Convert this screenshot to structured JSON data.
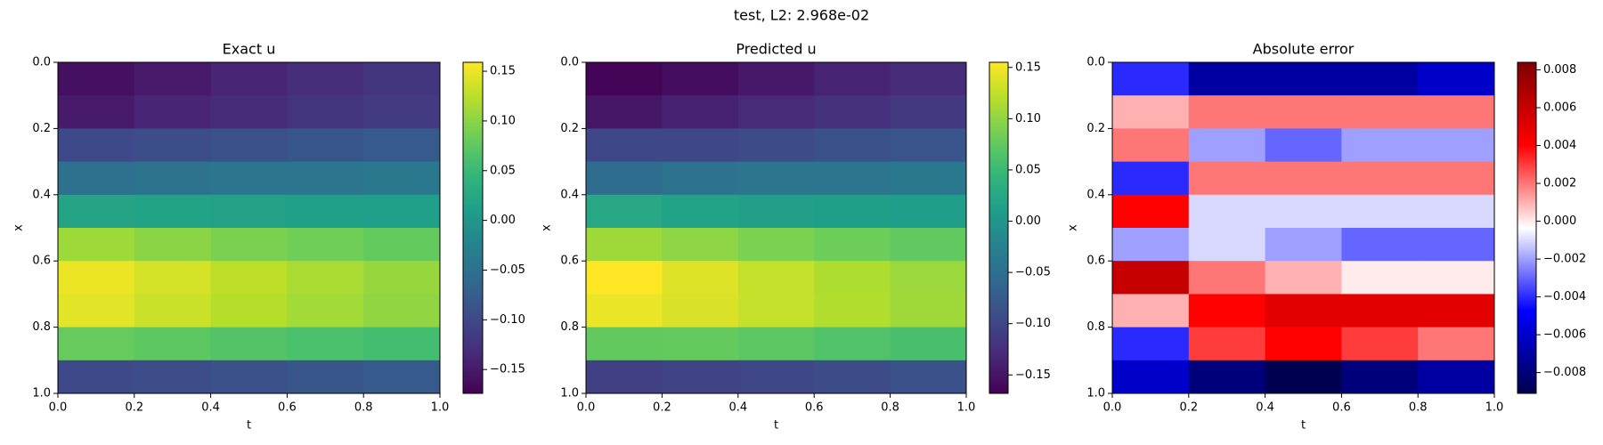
{
  "title": "test, L2: 2.968e-02",
  "chart_data": [
    {
      "type": "heatmap",
      "title": "Exact u",
      "xlabel": "t",
      "ylabel": "x",
      "x": [
        0.1,
        0.3,
        0.5,
        0.7,
        0.9
      ],
      "y": [
        0.05,
        0.15,
        0.25,
        0.35,
        0.45,
        0.55,
        0.65,
        0.75,
        0.85,
        0.95
      ],
      "z": [
        [
          -0.16,
          -0.15,
          -0.14,
          -0.13,
          -0.122
        ],
        [
          -0.15,
          -0.14,
          -0.132,
          -0.124,
          -0.116
        ],
        [
          -0.1,
          -0.095,
          -0.09,
          -0.085,
          -0.08
        ],
        [
          -0.05,
          -0.048,
          -0.045,
          -0.043,
          -0.04
        ],
        [
          0.02,
          0.018,
          0.016,
          0.014,
          0.012
        ],
        [
          0.11,
          0.1,
          0.092,
          0.085,
          0.078
        ],
        [
          0.15,
          0.138,
          0.126,
          0.116,
          0.106
        ],
        [
          0.145,
          0.133,
          0.122,
          0.112,
          0.103
        ],
        [
          0.08,
          0.074,
          0.068,
          0.062,
          0.058
        ],
        [
          -0.1,
          -0.095,
          -0.09,
          -0.085,
          -0.08
        ]
      ],
      "xlim": [
        0,
        1
      ],
      "ylim": [
        1,
        0
      ],
      "xticks": [
        {
          "value": 0,
          "label": "0.0"
        },
        {
          "value": 0.2,
          "label": "0.2"
        },
        {
          "value": 0.4,
          "label": "0.4"
        },
        {
          "value": 0.6,
          "label": "0.6"
        },
        {
          "value": 0.8,
          "label": "0.8"
        },
        {
          "value": 1,
          "label": "1.0"
        }
      ],
      "yticks": [
        {
          "value": 0,
          "label": "0.0"
        },
        {
          "value": 0.2,
          "label": "0.2"
        },
        {
          "value": 0.4,
          "label": "0.4"
        },
        {
          "value": 0.6,
          "label": "0.6"
        },
        {
          "value": 0.8,
          "label": "0.8"
        },
        {
          "value": 1,
          "label": "1.0"
        }
      ],
      "cmap": "viridis",
      "clim": [
        -0.174,
        0.159
      ],
      "cticks": [
        {
          "value": -0.15,
          "label": "−0.15"
        },
        {
          "value": -0.1,
          "label": "−0.10"
        },
        {
          "value": -0.05,
          "label": "−0.05"
        },
        {
          "value": 0,
          "label": "0.00"
        },
        {
          "value": 0.05,
          "label": "0.05"
        },
        {
          "value": 0.1,
          "label": "0.10"
        },
        {
          "value": 0.15,
          "label": "0.15"
        }
      ]
    },
    {
      "type": "heatmap",
      "title": "Predicted u",
      "xlabel": "t",
      "ylabel": "x",
      "x": [
        0.1,
        0.3,
        0.5,
        0.7,
        0.9
      ],
      "y": [
        0.05,
        0.15,
        0.25,
        0.35,
        0.45,
        0.55,
        0.65,
        0.75,
        0.85,
        0.95
      ],
      "z": [
        [
          -0.164,
          -0.157,
          -0.147,
          -0.137,
          -0.128
        ],
        [
          -0.149,
          -0.138,
          -0.13,
          -0.122,
          -0.114
        ],
        [
          -0.098,
          -0.097,
          -0.093,
          -0.087,
          -0.082
        ],
        [
          -0.054,
          -0.046,
          -0.043,
          -0.041,
          -0.038
        ],
        [
          0.024,
          0.017,
          0.015,
          0.013,
          0.011
        ],
        [
          0.108,
          0.099,
          0.09,
          0.082,
          0.075
        ],
        [
          0.156,
          0.14,
          0.127,
          0.116,
          0.106
        ],
        [
          0.146,
          0.137,
          0.127,
          0.117,
          0.108
        ],
        [
          0.076,
          0.077,
          0.072,
          0.065,
          0.06
        ],
        [
          -0.106,
          -0.103,
          -0.099,
          -0.093,
          -0.087
        ]
      ],
      "xlim": [
        0,
        1
      ],
      "ylim": [
        1,
        0
      ],
      "xticks": [
        {
          "value": 0,
          "label": "0.0"
        },
        {
          "value": 0.2,
          "label": "0.2"
        },
        {
          "value": 0.4,
          "label": "0.4"
        },
        {
          "value": 0.6,
          "label": "0.6"
        },
        {
          "value": 0.8,
          "label": "0.8"
        },
        {
          "value": 1,
          "label": "1.0"
        }
      ],
      "yticks": [
        {
          "value": 0,
          "label": "0.0"
        },
        {
          "value": 0.2,
          "label": "0.2"
        },
        {
          "value": 0.4,
          "label": "0.4"
        },
        {
          "value": 0.6,
          "label": "0.6"
        },
        {
          "value": 0.8,
          "label": "0.8"
        },
        {
          "value": 1,
          "label": "1.0"
        }
      ],
      "cmap": "viridis",
      "clim": [
        -0.168,
        0.155
      ],
      "cticks": [
        {
          "value": -0.15,
          "label": "−0.15"
        },
        {
          "value": -0.1,
          "label": "−0.10"
        },
        {
          "value": -0.05,
          "label": "−0.05"
        },
        {
          "value": 0,
          "label": "0.00"
        },
        {
          "value": 0.05,
          "label": "0.05"
        },
        {
          "value": 0.1,
          "label": "0.10"
        },
        {
          "value": 0.15,
          "label": "0.15"
        }
      ]
    },
    {
      "type": "heatmap",
      "title": "Absolute error",
      "xlabel": "t",
      "ylabel": "x",
      "x": [
        0.1,
        0.3,
        0.5,
        0.7,
        0.9
      ],
      "y": [
        0.05,
        0.15,
        0.25,
        0.35,
        0.45,
        0.55,
        0.65,
        0.75,
        0.85,
        0.95
      ],
      "z": [
        [
          -0.004,
          -0.007,
          -0.007,
          -0.007,
          -0.006
        ],
        [
          0.001,
          0.002,
          0.002,
          0.002,
          0.002
        ],
        [
          0.002,
          -0.002,
          -0.003,
          -0.002,
          -0.002
        ],
        [
          -0.004,
          0.002,
          0.002,
          0.002,
          0.002
        ],
        [
          0.004,
          -0.001,
          -0.001,
          -0.001,
          -0.001
        ],
        [
          -0.002,
          -0.001,
          -0.002,
          -0.003,
          -0.003
        ],
        [
          0.006,
          0.002,
          0.001,
          0.0,
          0.0
        ],
        [
          0.001,
          0.004,
          0.005,
          0.005,
          0.005
        ],
        [
          -0.004,
          0.003,
          0.004,
          0.003,
          0.002
        ],
        [
          -0.006,
          -0.008,
          -0.009,
          -0.008,
          -0.007
        ]
      ],
      "xlim": [
        0,
        1
      ],
      "ylim": [
        1,
        0
      ],
      "xticks": [
        {
          "value": 0,
          "label": "0.0"
        },
        {
          "value": 0.2,
          "label": "0.2"
        },
        {
          "value": 0.4,
          "label": "0.4"
        },
        {
          "value": 0.6,
          "label": "0.6"
        },
        {
          "value": 0.8,
          "label": "0.8"
        },
        {
          "value": 1,
          "label": "1.0"
        }
      ],
      "yticks": [
        {
          "value": 0,
          "label": "0.0"
        },
        {
          "value": 0.2,
          "label": "0.2"
        },
        {
          "value": 0.4,
          "label": "0.4"
        },
        {
          "value": 0.6,
          "label": "0.6"
        },
        {
          "value": 0.8,
          "label": "0.8"
        },
        {
          "value": 1,
          "label": "1.0"
        }
      ],
      "cmap": "seismic",
      "clim": [
        -0.0091,
        0.0084
      ],
      "cticks": [
        {
          "value": -0.008,
          "label": "−0.008"
        },
        {
          "value": -0.006,
          "label": "−0.006"
        },
        {
          "value": -0.004,
          "label": "−0.004"
        },
        {
          "value": -0.002,
          "label": "−0.002"
        },
        {
          "value": 0,
          "label": "0.000"
        },
        {
          "value": 0.002,
          "label": "0.002"
        },
        {
          "value": 0.004,
          "label": "0.004"
        },
        {
          "value": 0.006,
          "label": "0.006"
        },
        {
          "value": 0.008,
          "label": "0.008"
        }
      ]
    }
  ]
}
